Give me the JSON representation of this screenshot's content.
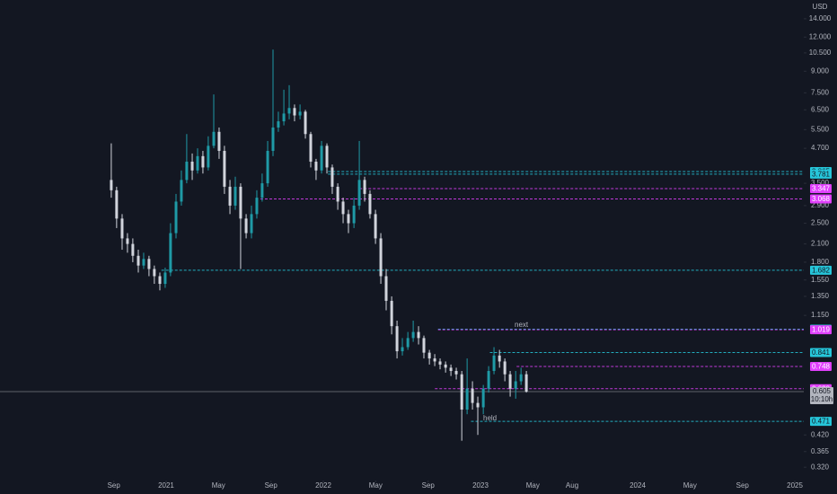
{
  "chart_data": {
    "type": "candlestick",
    "currency": "USD",
    "log_scale": true,
    "up_color": "#1f9aa6",
    "down_color": "#d1d4dc",
    "xlim": [
      2019.943,
      2025.057
    ],
    "ylim": [
      0.286,
      16.4
    ],
    "xticks": [
      {
        "value": 2020.667,
        "label": "Sep"
      },
      {
        "value": 2021,
        "label": "2021"
      },
      {
        "value": 2021.333,
        "label": "May"
      },
      {
        "value": 2021.667,
        "label": "Sep"
      },
      {
        "value": 2022,
        "label": "2022"
      },
      {
        "value": 2022.333,
        "label": "May"
      },
      {
        "value": 2022.667,
        "label": "Sep"
      },
      {
        "value": 2023,
        "label": "2023"
      },
      {
        "value": 2023.333,
        "label": "May"
      },
      {
        "value": 2023.583,
        "label": "Aug"
      },
      {
        "value": 2024,
        "label": "2024"
      },
      {
        "value": 2024.333,
        "label": "May"
      },
      {
        "value": 2024.667,
        "label": "Sep"
      },
      {
        "value": 2025,
        "label": "2025"
      }
    ],
    "yticks": [
      {
        "value": 14,
        "label": "14.000"
      },
      {
        "value": 12,
        "label": "12.000"
      },
      {
        "value": 10.5,
        "label": "10.500"
      },
      {
        "value": 9,
        "label": "9.000"
      },
      {
        "value": 7.5,
        "label": "7.500"
      },
      {
        "value": 6.5,
        "label": "6.500"
      },
      {
        "value": 5.5,
        "label": "5.500"
      },
      {
        "value": 4.7,
        "label": "4.700"
      },
      {
        "value": 3.5,
        "label": "3.500"
      },
      {
        "value": 2.9,
        "label": "2.900"
      },
      {
        "value": 2.5,
        "label": "2.500"
      },
      {
        "value": 2.1,
        "label": "2.100"
      },
      {
        "value": 1.8,
        "label": "1.800"
      },
      {
        "value": 1.55,
        "label": "1.550"
      },
      {
        "value": 1.35,
        "label": "1.350"
      },
      {
        "value": 1.15,
        "label": "1.150"
      },
      {
        "value": 0.42,
        "label": "0.420"
      },
      {
        "value": 0.365,
        "label": "0.365"
      },
      {
        "value": 0.32,
        "label": "0.320"
      }
    ],
    "x": [
      2020.651,
      2020.685,
      2020.72,
      2020.754,
      2020.788,
      2020.823,
      2020.857,
      2020.891,
      2020.925,
      2020.96,
      2020.994,
      2021.028,
      2021.063,
      2021.097,
      2021.131,
      2021.166,
      2021.2,
      2021.234,
      2021.268,
      2021.303,
      2021.337,
      2021.371,
      2021.406,
      2021.44,
      2021.474,
      2021.509,
      2021.543,
      2021.577,
      2021.611,
      2021.646,
      2021.68,
      2021.714,
      2021.749,
      2021.783,
      2021.817,
      2021.852,
      2021.886,
      2021.92,
      2021.954,
      2021.989,
      2022.023,
      2022.057,
      2022.092,
      2022.126,
      2022.16,
      2022.195,
      2022.229,
      2022.263,
      2022.297,
      2022.332,
      2022.366,
      2022.4,
      2022.435,
      2022.469,
      2022.503,
      2022.538,
      2022.572,
      2022.606,
      2022.64,
      2022.675,
      2022.709,
      2022.743,
      2022.778,
      2022.812,
      2022.846,
      2022.881,
      2022.915,
      2022.949,
      2022.983,
      2023.018,
      2023.052,
      2023.086,
      2023.121,
      2023.155,
      2023.189,
      2023.224,
      2023.258,
      2023.292
    ],
    "open": [
      3.6,
      3.3,
      2.6,
      2.2,
      2.1,
      1.9,
      1.75,
      1.85,
      1.7,
      1.6,
      1.5,
      1.65,
      2.3,
      3.0,
      3.6,
      4.2,
      3.9,
      4.4,
      4.0,
      4.8,
      5.4,
      4.6,
      3.4,
      2.9,
      3.4,
      2.6,
      2.3,
      2.7,
      3.1,
      3.5,
      4.6,
      5.6,
      5.9,
      6.3,
      6.6,
      6.2,
      6.4,
      5.3,
      4.2,
      3.9,
      4.8,
      4.0,
      3.4,
      3.0,
      2.7,
      2.5,
      2.9,
      3.6,
      3.2,
      2.7,
      2.2,
      1.6,
      1.3,
      1.05,
      0.85,
      0.88,
      0.95,
      1.0,
      0.95,
      0.84,
      0.8,
      0.78,
      0.76,
      0.74,
      0.72,
      0.7,
      0.52,
      0.62,
      0.55,
      0.53,
      0.62,
      0.72,
      0.82,
      0.78,
      0.7,
      0.62,
      0.66,
      0.7
    ],
    "high": [
      4.9,
      3.4,
      2.7,
      2.3,
      2.2,
      2.0,
      1.95,
      1.9,
      1.75,
      1.65,
      1.72,
      2.5,
      3.2,
      3.9,
      5.3,
      4.5,
      4.7,
      4.6,
      5.2,
      7.4,
      5.6,
      4.8,
      3.6,
      3.7,
      3.5,
      2.7,
      2.9,
      3.3,
      3.8,
      5.0,
      10.8,
      6.4,
      7.7,
      8.0,
      6.8,
      6.8,
      6.5,
      5.4,
      4.3,
      5.0,
      4.9,
      4.1,
      3.5,
      3.1,
      2.8,
      3.1,
      5.0,
      3.7,
      3.3,
      2.8,
      2.3,
      1.7,
      1.35,
      1.1,
      0.95,
      1.0,
      1.1,
      1.05,
      0.97,
      0.86,
      0.83,
      0.8,
      0.78,
      0.76,
      0.74,
      0.72,
      0.8,
      0.66,
      0.58,
      0.64,
      0.75,
      0.88,
      0.86,
      0.8,
      0.72,
      0.72,
      0.74,
      0.72
    ],
    "low": [
      3.1,
      2.4,
      2.0,
      1.95,
      1.8,
      1.65,
      1.7,
      1.6,
      1.5,
      1.42,
      1.45,
      1.6,
      2.2,
      2.9,
      3.5,
      3.6,
      3.8,
      3.8,
      3.9,
      4.7,
      4.3,
      3.2,
      2.7,
      2.8,
      1.7,
      2.2,
      2.2,
      2.6,
      3.0,
      3.4,
      4.4,
      5.4,
      5.7,
      6.0,
      5.9,
      6.0,
      5.1,
      4.0,
      3.6,
      3.8,
      3.8,
      3.2,
      2.8,
      2.5,
      2.3,
      2.4,
      2.8,
      3.0,
      2.6,
      2.1,
      1.5,
      1.2,
      0.98,
      0.8,
      0.82,
      0.86,
      0.92,
      0.9,
      0.8,
      0.76,
      0.75,
      0.73,
      0.71,
      0.69,
      0.67,
      0.4,
      0.5,
      0.52,
      0.42,
      0.5,
      0.6,
      0.7,
      0.74,
      0.66,
      0.58,
      0.57,
      0.64,
      0.6
    ],
    "close": [
      3.3,
      2.6,
      2.2,
      2.1,
      1.9,
      1.75,
      1.85,
      1.7,
      1.6,
      1.5,
      1.65,
      2.3,
      3.0,
      3.6,
      4.2,
      3.9,
      4.4,
      4.0,
      4.8,
      5.4,
      4.6,
      3.4,
      2.9,
      3.4,
      2.6,
      2.3,
      2.7,
      3.1,
      3.5,
      4.6,
      5.6,
      5.9,
      6.3,
      6.6,
      6.2,
      6.4,
      5.3,
      4.2,
      3.9,
      4.8,
      4.0,
      3.4,
      3.0,
      2.7,
      2.5,
      2.9,
      3.6,
      3.2,
      2.7,
      2.2,
      1.6,
      1.3,
      1.05,
      0.85,
      0.88,
      0.95,
      1.0,
      0.95,
      0.84,
      0.8,
      0.78,
      0.76,
      0.74,
      0.72,
      0.7,
      0.52,
      0.62,
      0.55,
      0.53,
      0.62,
      0.72,
      0.82,
      0.78,
      0.7,
      0.62,
      0.66,
      0.7,
      0.605
    ],
    "levels": [
      {
        "value": 3.865,
        "label": "3.865",
        "color": "#26c6da",
        "start": 2022.03
      },
      {
        "value": 3.781,
        "label": "3.781",
        "color": "#26c6da",
        "start": 2022.03
      },
      {
        "value": 3.347,
        "label": "3.347",
        "color": "#e040fb",
        "start": 2022.23
      },
      {
        "value": 3.068,
        "label": "3.068",
        "color": "#e040fb",
        "start": 2021.6
      },
      {
        "value": 1.682,
        "label": "1.682",
        "color": "#26c6da",
        "start": 2020.97
      },
      {
        "value": 1.024,
        "label": "1.024",
        "color": "#26c6da",
        "start": 2022.73
      },
      {
        "value": 1.019,
        "label": "1.019",
        "color": "#e040fb",
        "start": 2022.73
      },
      {
        "value": 0.841,
        "label": "0.841",
        "color": "#26c6da",
        "start": 2023.06
      },
      {
        "value": 0.748,
        "label": "0.748",
        "color": "#e040fb",
        "start": 2023.23
      },
      {
        "value": 0.62,
        "label": "0.620",
        "color": "#e040fb",
        "start": 2022.71
      },
      {
        "value": 0.471,
        "label": "0.471",
        "color": "#26c6da",
        "start": 2022.94
      }
    ],
    "current": {
      "value": 0.605,
      "label": "0.605",
      "countdown": "10:10h"
    },
    "annotations": [
      "next",
      "held"
    ]
  }
}
